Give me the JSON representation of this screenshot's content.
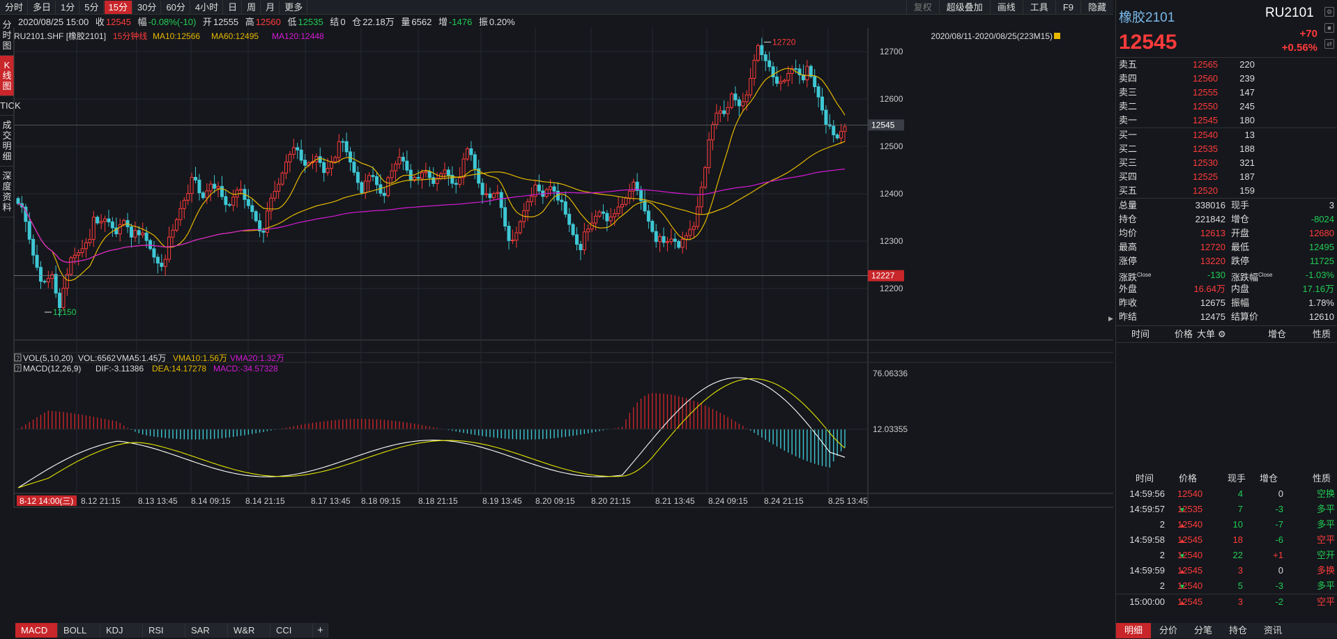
{
  "topbar": {
    "periods": [
      "分时",
      "多日",
      "1分",
      "5分",
      "15分",
      "30分",
      "60分",
      "4小时",
      "日",
      "周",
      "月",
      "更多"
    ],
    "active_period": 4,
    "right_buttons": [
      "复权",
      "超级叠加",
      "画线",
      "工具",
      "F9",
      "隐藏"
    ]
  },
  "infoline": {
    "datetime": "2020/08/25 15:00",
    "close_label": "收",
    "close": "12545",
    "range_label": "幅",
    "range": "-0.08%(-10)",
    "open_label": "开",
    "open": "12555",
    "high_label": "高",
    "high": "12560",
    "low_label": "低",
    "low": "12535",
    "settle_label": "结",
    "settle": "0",
    "oi_label": "仓",
    "oi": "22.18万",
    "vol_label": "量",
    "vol": "6562",
    "inc_label": "增",
    "inc": "-1476",
    "amp_label": "振",
    "amp": "0.20%"
  },
  "left_tabs": [
    "分时图",
    "K线图",
    "TICK",
    "成交明细",
    "深度资料"
  ],
  "left_active": 1,
  "kline": {
    "symbol": "RU2101.SHF [橡胶2101]",
    "period": "15分钟线",
    "ma10": "MA10:12566",
    "ma60": "MA60:12495",
    "ma120": "MA120:12448",
    "range_text": "2020/08/11-2020/08/25(223M15)",
    "price_ticks": [
      "12700",
      "12600",
      "12500",
      "12400",
      "12300",
      "12200"
    ],
    "current_price": "12545",
    "low_line_price": "12227",
    "high_mark": "12720",
    "low_mark": "12150",
    "colors": {
      "up": "#ff3b3b",
      "down": "#3ec7d4",
      "ma10": "#e6b800",
      "ma60": "#e6b800",
      "ma120": "#d61ad6"
    }
  },
  "vol_header": {
    "q": "?",
    "title": "VOL(5,10,20)",
    "vol": "VOL:6562",
    "vma5": "VMA5:1.45万",
    "vma10": "VMA10:1.56万",
    "vma20": "VMA20:1.32万"
  },
  "macd": {
    "q": "?",
    "title": "MACD(12,26,9)",
    "dif": "DIF:-3.11386",
    "dea": "DEA:14.17278",
    "macd": "MACD:-34.57328",
    "ticks": [
      "76.06336",
      "12.03355"
    ]
  },
  "time_axis": {
    "first": "8-12 14:00(三)",
    "labels": [
      "8.12 21:15",
      "8.13 13:45",
      "8.14 09:15",
      "8.14 21:15",
      "8.17 13:45",
      "8.18 09:15",
      "8.18 21:15",
      "8.19 13:45",
      "8.20 09:15",
      "8.20 21:15",
      "8.21 13:45",
      "8.24 09:15",
      "8.24 21:15",
      "8.25 13:45"
    ]
  },
  "bottom_tabs": [
    "MACD",
    "BOLL",
    "KDJ",
    "RSI",
    "SAR",
    "W&R",
    "CCI",
    "+"
  ],
  "bottom_active": 0,
  "quote": {
    "name": "橡胶2101",
    "code": "RU2101",
    "price": "12545",
    "change": "+70",
    "change_pct": "+0.56%"
  },
  "asks": [
    {
      "label": "卖五",
      "price": "12565",
      "vol": "220"
    },
    {
      "label": "卖四",
      "price": "12560",
      "vol": "239"
    },
    {
      "label": "卖三",
      "price": "12555",
      "vol": "147"
    },
    {
      "label": "卖二",
      "price": "12550",
      "vol": "245"
    },
    {
      "label": "卖一",
      "price": "12545",
      "vol": "180"
    }
  ],
  "bids": [
    {
      "label": "买一",
      "price": "12540",
      "vol": "13"
    },
    {
      "label": "买二",
      "price": "12535",
      "vol": "188"
    },
    {
      "label": "买三",
      "price": "12530",
      "vol": "321"
    },
    {
      "label": "买四",
      "price": "12525",
      "vol": "187"
    },
    {
      "label": "买五",
      "price": "12520",
      "vol": "159"
    }
  ],
  "stats": [
    {
      "l1": "总量",
      "v1": "338016",
      "c1": "white",
      "l2": "现手",
      "v2": "3",
      "c2": "white"
    },
    {
      "l1": "持仓",
      "v1": "221842",
      "c1": "white",
      "l2": "增仓",
      "v2": "-8024",
      "c2": "green"
    },
    {
      "l1": "均价",
      "v1": "12613",
      "c1": "red",
      "l2": "开盘",
      "v2": "12680",
      "c2": "red"
    },
    {
      "l1": "最高",
      "v1": "12720",
      "c1": "red",
      "l2": "最低",
      "v2": "12495",
      "c2": "green"
    },
    {
      "l1": "涨停",
      "v1": "13220",
      "c1": "red",
      "l2": "跌停",
      "v2": "11725",
      "c2": "green"
    },
    {
      "l1": "涨跌",
      "sup1": "Close",
      "v1": "-130",
      "c1": "green",
      "l2": "涨跌幅",
      "sup2": "Close",
      "v2": "-1.03%",
      "c2": "green"
    },
    {
      "l1": "外盘",
      "v1": "16.64万",
      "c1": "red",
      "l2": "内盘",
      "v2": "17.16万",
      "c2": "green"
    },
    {
      "l1": "昨收",
      "v1": "12675",
      "c1": "white",
      "l2": "振幅",
      "v2": "1.78%",
      "c2": "white"
    },
    {
      "l1": "昨结",
      "v1": "12475",
      "c1": "white",
      "l2": "结算价",
      "v2": "12610",
      "c2": "white"
    }
  ],
  "big_header": [
    "时间",
    "价格",
    "大单",
    "增仓",
    "性质"
  ],
  "tick_header": [
    "时间",
    "价格",
    "现手",
    "增仓",
    "性质"
  ],
  "ticks": [
    {
      "time": "14:59:56",
      "price": "12540",
      "pc": "red",
      "arrow": "",
      "qty": "4",
      "qc": "green",
      "oi": "0",
      "type": "空换",
      "tc": "green"
    },
    {
      "time": "14:59:57",
      "price": "12535",
      "pc": "red",
      "arrow": "down",
      "qty": "7",
      "qc": "green",
      "oi": "-3",
      "type": "多平",
      "tc": "green"
    },
    {
      "time": "2",
      "price": "12540",
      "pc": "red",
      "arrow": "up",
      "qty": "10",
      "qc": "green",
      "oi": "-7",
      "type": "多平",
      "tc": "green"
    },
    {
      "time": "14:59:58",
      "price": "12545",
      "pc": "red",
      "arrow": "up",
      "qty": "18",
      "qc": "red",
      "oi": "-6",
      "type": "空平",
      "tc": "red"
    },
    {
      "time": "2",
      "price": "12540",
      "pc": "red",
      "arrow": "down",
      "qty": "22",
      "qc": "green",
      "oi": "+1",
      "type": "空开",
      "tc": "green"
    },
    {
      "time": "14:59:59",
      "price": "12545",
      "pc": "red",
      "arrow": "up",
      "qty": "3",
      "qc": "red",
      "oi": "0",
      "type": "多换",
      "tc": "red"
    },
    {
      "time": "2",
      "price": "12540",
      "pc": "red",
      "arrow": "down",
      "qty": "5",
      "qc": "green",
      "oi": "-3",
      "type": "多平",
      "tc": "green"
    },
    {
      "time": "15:00:00",
      "price": "12545",
      "pc": "red",
      "arrow": "up",
      "qty": "3",
      "qc": "red",
      "oi": "-2",
      "type": "空平",
      "tc": "red"
    }
  ],
  "right_bottom_tabs": [
    "明细",
    "分价",
    "分笔",
    "持仓",
    "资讯"
  ],
  "right_bottom_active": 0,
  "chart_data": {
    "type": "candlestick",
    "title": "RU2101.SHF [橡胶2101] 15分钟线",
    "ylim": [
      12150,
      12730
    ],
    "y_ticks": [
      12200,
      12300,
      12400,
      12500,
      12600,
      12700
    ],
    "last_price": 12545,
    "segments": [
      {
        "from": "8-12 14:00",
        "anchors": [
          [
            0,
            12390
          ],
          [
            3,
            12290
          ],
          [
            6,
            12200
          ],
          [
            8,
            12230
          ],
          [
            10,
            12160
          ],
          [
            14,
            12260
          ],
          [
            20,
            12340
          ],
          [
            28,
            12330
          ],
          [
            34,
            12310
          ],
          [
            40,
            12260
          ],
          [
            46,
            12310
          ],
          [
            52,
            12300
          ]
        ]
      }
    ],
    "price_path": [
      12390,
      12360,
      12330,
      12290,
      12260,
      12240,
      12200,
      12210,
      12230,
      12190,
      12160,
      12220,
      12250,
      12260,
      12270,
      12280,
      12300,
      12310,
      12340,
      12330,
      12340,
      12350,
      12340,
      12330,
      12320,
      12340,
      12330,
      12310,
      12330,
      12320,
      12300,
      12290,
      12270,
      12260,
      12250,
      12270,
      12300,
      12320,
      12350,
      12380,
      12400,
      12420,
      12430,
      12400,
      12390,
      12410,
      12430,
      12420,
      12400,
      12380,
      12370,
      12390,
      12420,
      12400,
      12380,
      12370,
      12360,
      12340,
      12320,
      12340,
      12380,
      12400,
      12420,
      12450,
      12480,
      12470,
      12500,
      12480,
      12460,
      12470,
      12480,
      12470,
      12460,
      12440,
      12460,
      12480,
      12490,
      12510,
      12490,
      12470,
      12450,
      12430,
      12410,
      12420,
      12440,
      12430,
      12410,
      12400,
      12420,
      12440,
      12460,
      12480,
      12470,
      12450,
      12430,
      12420,
      12440,
      12450,
      12440,
      12430,
      12420,
      12440,
      12450,
      12430,
      12420,
      12440,
      12460,
      12490,
      12480,
      12450,
      12420,
      12400,
      12380,
      12390,
      12410,
      12380,
      12340,
      12310,
      12290,
      12320,
      12350,
      12380,
      12400,
      12410,
      12400,
      12390,
      12410,
      12420,
      12410,
      12390,
      12360,
      12340,
      12320,
      12300,
      12290,
      12310,
      12320,
      12340,
      12360,
      12370,
      12360,
      12340,
      12350,
      12370,
      12380,
      12400,
      12420,
      12410,
      12390,
      12370,
      12350,
      12330,
      12310,
      12300,
      12290,
      12300,
      12310,
      12300,
      12290,
      12300,
      12320,
      12330,
      12380,
      12430,
      12480,
      12520,
      12560,
      12580,
      12570,
      12590,
      12600,
      12590,
      12580,
      12600,
      12620,
      12680,
      12710,
      12690,
      12680,
      12670,
      12650,
      12640,
      12620,
      12640,
      12660,
      12670,
      12660,
      12650,
      12660,
      12640,
      12620,
      12600,
      12570,
      12540,
      12520,
      12510,
      12530,
      12545
    ]
  }
}
